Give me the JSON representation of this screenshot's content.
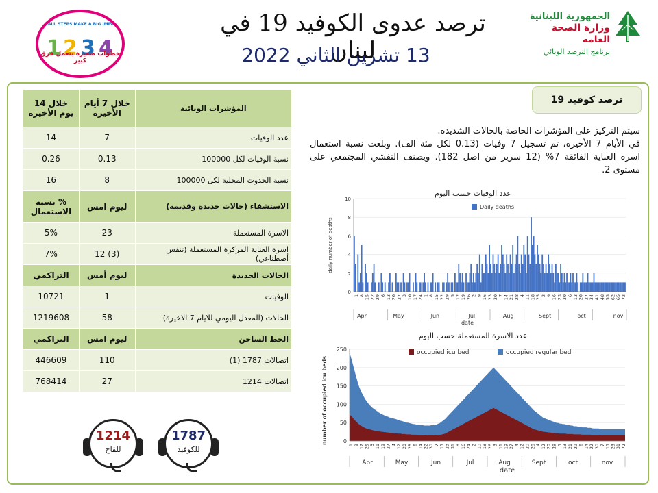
{
  "header": {
    "title": "ترصد عدوى الكوفيد 19 في لبنان",
    "date": "13 تشرين الثاني 2022",
    "ministry": {
      "line1": "الجمهورية اللبنانية",
      "line2": "وزارة الصحة العامة",
      "line3": "برنامج الترصد الوبائي"
    },
    "campaign": {
      "slogan": "SMALL STEPS MAKE A BIG IMPACT",
      "slogan_ar": "خطوات صغيرة بتعمل فرق كبير"
    }
  },
  "table": {
    "header": {
      "label": "المؤشرات الوبائية",
      "col7": "خلال 7 أيام الأخيرة",
      "col14": "خلال 14 يوم الأخيرة"
    },
    "rows": [
      {
        "label": "عدد الوفيات",
        "v7": "7",
        "v14": "14"
      },
      {
        "label": "نسبة الوفيات لكل 100000",
        "v7": "0.13",
        "v14": "0.26"
      },
      {
        "label": "نسبة الحدوث المحلية لكل 100000",
        "v7": "8",
        "v14": "16"
      }
    ],
    "hosp_header": {
      "label": "الاستشفاء (حالات جديدة وقديمة)",
      "yesterday": "ليوم امس",
      "pct": "% نسبة الاستعمال"
    },
    "hosp_rows": [
      {
        "label": "الاسرة المستعملة",
        "yesterday": "23",
        "pct": "5%"
      },
      {
        "label": "اسرة العناية المركزة المستعملة (تنفس أصطناعي)",
        "yesterday": "(3) 12",
        "pct": "7%"
      }
    ],
    "new_header": {
      "label": "الحالات الجديدة",
      "yesterday": "ليوم أمس",
      "cum": "التراكمي"
    },
    "new_rows": [
      {
        "label": "الوفيات",
        "yesterday": "1",
        "cum": "10721"
      },
      {
        "label": "الحالات (المعدل اليومي للايام 7 الاخيرة)",
        "yesterday": "58",
        "cum": "1219608"
      }
    ],
    "hotline_header": {
      "label": "الخط الساخن",
      "yesterday": "ليوم امس",
      "cum": "التراكمي"
    },
    "hotline_rows": [
      {
        "label": "اتصالات 1787 (1)",
        "yesterday": "110",
        "cum": "446609"
      },
      {
        "label": "اتصالات 1214",
        "yesterday": "27",
        "cum": "768414"
      }
    ]
  },
  "section_badge": "ترصد كوفيد 19",
  "summary": {
    "line1": "سيتم التركيز على المؤشرات الخاصة بالحالات الشديدة.",
    "line2": "في الأيام 7 الأخيرة، تم تسجيل 7 وفيات (0.13 لكل مئة الف). وبلغت نسبة استعمال اسرة العناية الفائقة 7% (12 سرير من اصل 182). ويصنف التفشي المجتمعي على مستوى 2."
  },
  "hotlines": [
    {
      "number": "1787",
      "label": "للكوفيد",
      "color": "#1c2a6b"
    },
    {
      "number": "1214",
      "label": "للقاح",
      "color": "#9b1b1b"
    }
  ],
  "colors": {
    "frame": "#9bbb59",
    "header_cell": "#c5d89c",
    "row_cell": "#ebf1dd",
    "bar": "#4472c4",
    "icu": "#7b1a1a",
    "regular": "#4a7ebb"
  },
  "chart_data": [
    {
      "type": "bar",
      "title": "عدد الوفيات حسب اليوم",
      "legend": [
        "Daily deaths"
      ],
      "xlabel": "date",
      "ylabel": "daily number of deaths",
      "ylim": [
        0,
        10
      ],
      "yticks": [
        0,
        2,
        4,
        6,
        8,
        10
      ],
      "x_tick_labels": [
        "1",
        "8",
        "15",
        "22",
        "29",
        "6",
        "13",
        "20",
        "27",
        "3",
        "10",
        "17",
        "24",
        "1",
        "8",
        "15",
        "22",
        "29",
        "5",
        "12",
        "19",
        "26",
        "2",
        "9",
        "16",
        "23",
        "30",
        "7",
        "14",
        "21",
        "28",
        "4",
        "11",
        "18",
        "25",
        "2",
        "9",
        "16",
        "23",
        "30",
        "6",
        "13",
        "20",
        "27",
        "34",
        "41",
        "48",
        "55",
        "62",
        "65",
        "72"
      ],
      "months": [
        "Apr",
        "May",
        "Jun",
        "Jul",
        "Aug",
        "Sept",
        "oct",
        "nov"
      ],
      "values": [
        6,
        3,
        0,
        4,
        1,
        2,
        5,
        1,
        0,
        3,
        2,
        1,
        0,
        0,
        1,
        2,
        3,
        1,
        0,
        0,
        1,
        0,
        2,
        1,
        0,
        1,
        0,
        0,
        1,
        2,
        0,
        1,
        0,
        0,
        2,
        1,
        1,
        0,
        1,
        0,
        2,
        1,
        0,
        1,
        1,
        2,
        0,
        0,
        1,
        0,
        2,
        1,
        0,
        1,
        1,
        0,
        1,
        2,
        1,
        0,
        1,
        0,
        1,
        1,
        2,
        0,
        1,
        0,
        1,
        1,
        0,
        0,
        1,
        1,
        0,
        1,
        2,
        1,
        0,
        1,
        1,
        0,
        2,
        1,
        1,
        3,
        2,
        1,
        2,
        1,
        0,
        2,
        1,
        1,
        2,
        3,
        1,
        2,
        1,
        2,
        3,
        2,
        4,
        1,
        3,
        2,
        2,
        4,
        3,
        2,
        5,
        3,
        2,
        4,
        3,
        2,
        3,
        4,
        2,
        3,
        5,
        4,
        3,
        2,
        4,
        3,
        2,
        4,
        3,
        5,
        2,
        3,
        4,
        6,
        3,
        2,
        4,
        3,
        5,
        4,
        2,
        6,
        4,
        3,
        8,
        5,
        6,
        4,
        3,
        5,
        4,
        3,
        2,
        4,
        3,
        2,
        3,
        2,
        4,
        3,
        2,
        3,
        2,
        1,
        3,
        2,
        2,
        1,
        3,
        2,
        1,
        2,
        1,
        2,
        1,
        1,
        2,
        1,
        2,
        1,
        1,
        2,
        1,
        0,
        1,
        1,
        2,
        1,
        1,
        1,
        2,
        1,
        1,
        1,
        1,
        2,
        1,
        1,
        1,
        1,
        1,
        1,
        1,
        1,
        1,
        1,
        1,
        1,
        1,
        1,
        1,
        1,
        1,
        1,
        1,
        1,
        1,
        1,
        1,
        1,
        1,
        1
      ]
    },
    {
      "type": "area",
      "title": "عدد الاسرة المستعملة حسب اليوم",
      "xlabel": "date",
      "ylabel": "number of occupied icu beds",
      "ylim": [
        0,
        250
      ],
      "yticks": [
        0,
        50,
        100,
        150,
        200,
        250
      ],
      "months": [
        "Apr",
        "May",
        "Jun",
        "Jul",
        "Aug",
        "Sept",
        "oct",
        "nov"
      ],
      "x_tick_labels": [
        "1",
        "9",
        "17",
        "25",
        "3",
        "11",
        "19",
        "27",
        "4",
        "12",
        "20",
        "28",
        "6",
        "14",
        "22",
        "30",
        "7",
        "15",
        "23",
        "31",
        "8",
        "16",
        "24",
        "2",
        "10",
        "18",
        "26",
        "3",
        "11",
        "19",
        "27",
        "4",
        "12",
        "20",
        "28",
        "4",
        "12",
        "20",
        "28",
        "5",
        "13",
        "21",
        "29",
        "6",
        "14",
        "22",
        "30",
        "7",
        "15",
        "23",
        "31",
        "72"
      ],
      "series": [
        {
          "name": "occupied icu bed",
          "values": [
            72,
            68,
            65,
            60,
            56,
            52,
            48,
            45,
            42,
            40,
            38,
            36,
            34,
            33,
            32,
            31,
            30,
            29,
            28,
            28,
            27,
            26,
            26,
            25,
            25,
            24,
            24,
            23,
            23,
            22,
            22,
            22,
            21,
            21,
            21,
            20,
            20,
            20,
            19,
            19,
            19,
            18,
            18,
            18,
            18,
            17,
            17,
            17,
            17,
            16,
            16,
            16,
            16,
            16,
            15,
            15,
            15,
            15,
            15,
            15,
            15,
            15,
            15,
            15,
            16,
            16,
            17,
            18,
            19,
            20,
            22,
            24,
            26,
            28,
            30,
            32,
            34,
            36,
            38,
            40,
            42,
            44,
            46,
            48,
            50,
            52,
            54,
            56,
            58,
            60,
            62,
            64,
            66,
            68,
            70,
            72,
            74,
            76,
            78,
            80,
            82,
            84,
            86,
            88,
            90,
            88,
            86,
            84,
            82,
            80,
            78,
            76,
            74,
            72,
            70,
            68,
            66,
            64,
            62,
            60,
            58,
            56,
            54,
            52,
            50,
            48,
            46,
            44,
            42,
            40,
            38,
            36,
            34,
            32,
            31,
            30,
            29,
            28,
            27,
            26,
            25,
            25,
            24,
            24,
            23,
            23,
            22,
            22,
            22,
            21,
            21,
            21,
            20,
            20,
            20,
            20,
            20,
            19,
            19,
            19,
            19,
            19,
            18,
            18,
            18,
            18,
            18,
            18,
            17,
            17,
            17,
            17,
            17,
            17,
            17,
            16,
            16,
            16,
            16,
            16,
            16,
            16,
            15,
            15,
            15,
            15,
            15,
            15,
            15,
            15,
            15,
            15,
            15,
            15,
            15,
            15,
            15,
            15,
            15,
            15
          ]
        },
        {
          "name": "occupied regular bed",
          "values": [
            168,
            160,
            150,
            140,
            130,
            120,
            110,
            102,
            96,
            90,
            85,
            80,
            76,
            72,
            68,
            65,
            62,
            60,
            58,
            56,
            54,
            52,
            50,
            48,
            47,
            46,
            45,
            44,
            43,
            42,
            41,
            40,
            40,
            39,
            38,
            37,
            36,
            35,
            35,
            34,
            33,
            32,
            32,
            31,
            30,
            30,
            29,
            29,
            28,
            28,
            28,
            28,
            27,
            27,
            27,
            27,
            27,
            27,
            27,
            28,
            28,
            28,
            29,
            30,
            31,
            32,
            34,
            36,
            38,
            40,
            42,
            44,
            46,
            48,
            50,
            52,
            54,
            56,
            58,
            60,
            62,
            64,
            66,
            68,
            70,
            72,
            74,
            76,
            78,
            80,
            82,
            84,
            86,
            88,
            90,
            92,
            94,
            96,
            98,
            100,
            102,
            104,
            106,
            108,
            110,
            108,
            106,
            104,
            102,
            100,
            98,
            96,
            94,
            92,
            90,
            88,
            86,
            84,
            82,
            80,
            78,
            76,
            74,
            72,
            70,
            68,
            66,
            64,
            62,
            60,
            58,
            56,
            54,
            52,
            50,
            48,
            46,
            44,
            42,
            40,
            38,
            37,
            36,
            35,
            34,
            33,
            32,
            31,
            30,
            29,
            28,
            28,
            27,
            27,
            26,
            26,
            25,
            25,
            24,
            24,
            23,
            23,
            22,
            22,
            22,
            21,
            21,
            21,
            20,
            20,
            20,
            20,
            19,
            19,
            19,
            19,
            18,
            18,
            18,
            18,
            18,
            17,
            17,
            17,
            17,
            17,
            17,
            17,
            17,
            17,
            17,
            17,
            17,
            17,
            17,
            17,
            17,
            17,
            17,
            17
          ]
        }
      ]
    }
  ]
}
